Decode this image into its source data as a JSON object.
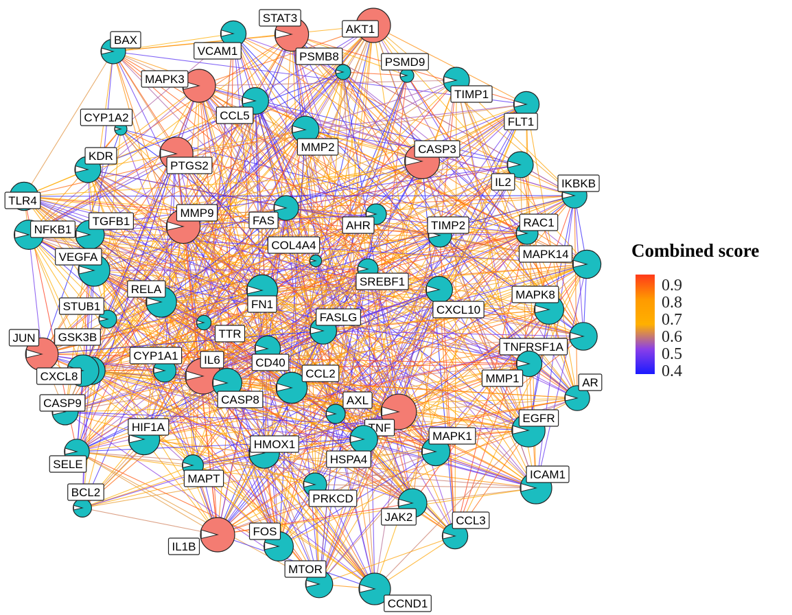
{
  "legend": {
    "title": "Combined score",
    "ticks": [
      "0.9",
      "0.8",
      "0.7",
      "0.6",
      "0.5",
      "0.4"
    ],
    "scale_min": 0.4,
    "scale_max": 0.95,
    "colors": [
      "#1a1aff",
      "#8a3fe8",
      "#ffb000",
      "#ff9a00",
      "#ff3a1a"
    ]
  },
  "node_colors": {
    "hub": "#f47c72",
    "normal": "#1bbdc0"
  },
  "nodes": [
    {
      "id": "AKT1",
      "type": "hub",
      "degree": 90
    },
    {
      "id": "STAT3",
      "type": "hub",
      "degree": 88
    },
    {
      "id": "BAX",
      "type": "normal",
      "degree": 55
    },
    {
      "id": "VCAM1",
      "type": "normal",
      "degree": 58
    },
    {
      "id": "PSMB8",
      "type": "normal",
      "degree": 20
    },
    {
      "id": "PSMD9",
      "type": "normal",
      "degree": 15
    },
    {
      "id": "MAPK3",
      "type": "hub",
      "degree": 85
    },
    {
      "id": "TIMP1",
      "type": "normal",
      "degree": 60
    },
    {
      "id": "CYP1A2",
      "type": "normal",
      "degree": 10
    },
    {
      "id": "CCL5",
      "type": "normal",
      "degree": 62
    },
    {
      "id": "FLT1",
      "type": "normal",
      "degree": 58
    },
    {
      "id": "MMP2",
      "type": "normal",
      "degree": 64
    },
    {
      "id": "CASP3",
      "type": "hub",
      "degree": 92
    },
    {
      "id": "KDR",
      "type": "normal",
      "degree": 60
    },
    {
      "id": "PTGS2",
      "type": "hub",
      "degree": 86
    },
    {
      "id": "IL2",
      "type": "normal",
      "degree": 60
    },
    {
      "id": "IKBKB",
      "type": "normal",
      "degree": 56
    },
    {
      "id": "TLR4",
      "type": "normal",
      "degree": 68
    },
    {
      "id": "TGFB1",
      "type": "normal",
      "degree": 70
    },
    {
      "id": "MMP9",
      "type": "hub",
      "degree": 88
    },
    {
      "id": "FAS",
      "type": "normal",
      "degree": 55
    },
    {
      "id": "AHR",
      "type": "normal",
      "degree": 40
    },
    {
      "id": "TIMP2",
      "type": "normal",
      "degree": 50
    },
    {
      "id": "RAC1",
      "type": "normal",
      "degree": 45
    },
    {
      "id": "NFKB1",
      "type": "normal",
      "degree": 72
    },
    {
      "id": "COL4A4",
      "type": "normal",
      "degree": 8
    },
    {
      "id": "MAPK14",
      "type": "normal",
      "degree": 68
    },
    {
      "id": "VEGFA",
      "type": "normal",
      "degree": 80
    },
    {
      "id": "SREBF1",
      "type": "normal",
      "degree": 40
    },
    {
      "id": "RELA",
      "type": "normal",
      "degree": 76
    },
    {
      "id": "FN1",
      "type": "normal",
      "degree": 78
    },
    {
      "id": "CXCL10",
      "type": "normal",
      "degree": 62
    },
    {
      "id": "MAPK8",
      "type": "normal",
      "degree": 72
    },
    {
      "id": "STUB1",
      "type": "normal",
      "degree": 30
    },
    {
      "id": "FASLG",
      "type": "normal",
      "degree": 62
    },
    {
      "id": "TTR",
      "type": "normal",
      "degree": 18
    },
    {
      "id": "JUN",
      "type": "hub",
      "degree": 84
    },
    {
      "id": "GSK3B",
      "type": "normal",
      "degree": 66
    },
    {
      "id": "TNFRSF1A",
      "type": "normal",
      "degree": 66
    },
    {
      "id": "CYP1A1",
      "type": "normal",
      "degree": 48
    },
    {
      "id": "CD40",
      "type": "normal",
      "degree": 58
    },
    {
      "id": "IL6",
      "type": "hub",
      "degree": 95
    },
    {
      "id": "CCL2",
      "type": "normal",
      "degree": 78
    },
    {
      "id": "CXCL8",
      "type": "normal",
      "degree": 80
    },
    {
      "id": "MMP1",
      "type": "normal",
      "degree": 58
    },
    {
      "id": "AR",
      "type": "normal",
      "degree": 56
    },
    {
      "id": "CASP8",
      "type": "normal",
      "degree": 72
    },
    {
      "id": "CASP9",
      "type": "normal",
      "degree": 60
    },
    {
      "id": "AXL",
      "type": "normal",
      "degree": 35
    },
    {
      "id": "TNF",
      "type": "hub",
      "degree": 94
    },
    {
      "id": "EGFR",
      "type": "normal",
      "degree": 86
    },
    {
      "id": "HIF1A",
      "type": "normal",
      "degree": 78
    },
    {
      "id": "HMOX1",
      "type": "normal",
      "degree": 76
    },
    {
      "id": "MAPK1",
      "type": "normal",
      "degree": 68
    },
    {
      "id": "SELE",
      "type": "normal",
      "degree": 56
    },
    {
      "id": "HSPA4",
      "type": "normal",
      "degree": 66
    },
    {
      "id": "MAPT",
      "type": "normal",
      "degree": 42
    },
    {
      "id": "ICAM1",
      "type": "normal",
      "degree": 80
    },
    {
      "id": "BCL2",
      "type": "normal",
      "degree": 32
    },
    {
      "id": "PRKCD",
      "type": "normal",
      "degree": 50
    },
    {
      "id": "JAK2",
      "type": "normal",
      "degree": 70
    },
    {
      "id": "CCL3",
      "type": "normal",
      "degree": 58
    },
    {
      "id": "FOS",
      "type": "normal",
      "degree": 72
    },
    {
      "id": "IL1B",
      "type": "hub",
      "degree": 90
    },
    {
      "id": "MTOR",
      "type": "normal",
      "degree": 64
    },
    {
      "id": "CCND1",
      "type": "normal",
      "degree": 80
    }
  ]
}
